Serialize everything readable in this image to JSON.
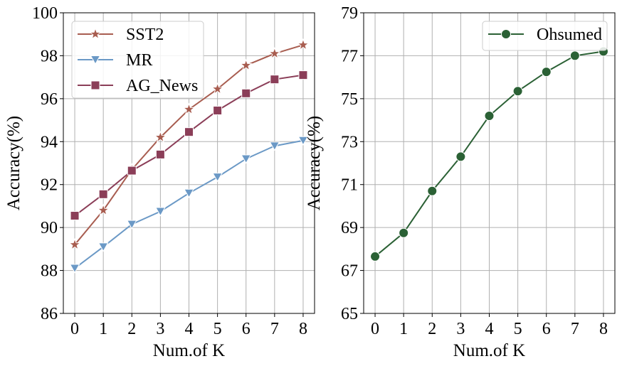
{
  "chart_data": [
    {
      "type": "line",
      "xlabel": "Num.of K",
      "ylabel": "Accuracy(%)",
      "x": [
        0,
        1,
        2,
        3,
        4,
        5,
        6,
        7,
        8
      ],
      "xticks": [
        "0",
        "1",
        "2",
        "3",
        "4",
        "5",
        "6",
        "7",
        "8"
      ],
      "xlim": [
        -0.4,
        8.4
      ],
      "ylim": [
        86,
        100
      ],
      "yticks": [
        "86",
        "88",
        "90",
        "92",
        "94",
        "96",
        "98",
        "100"
      ],
      "grid": true,
      "legend": "top-left",
      "series": [
        {
          "name": "SST2",
          "color": "#a85d50",
          "marker": "star",
          "values": [
            89.2,
            90.8,
            92.7,
            94.2,
            95.5,
            96.45,
            97.55,
            98.1,
            98.5
          ]
        },
        {
          "name": "MR",
          "color": "#6b99c6",
          "marker": "triangle-down",
          "values": [
            88.1,
            89.1,
            90.15,
            90.75,
            91.6,
            92.35,
            93.2,
            93.8,
            94.05
          ]
        },
        {
          "name": "AG_News",
          "color": "#8b3e58",
          "marker": "square",
          "values": [
            90.55,
            91.55,
            92.65,
            93.4,
            94.45,
            95.45,
            96.25,
            96.9,
            97.1
          ]
        }
      ]
    },
    {
      "type": "line",
      "xlabel": "Num.of K",
      "ylabel": "Accuracy(%)",
      "x": [
        0,
        1,
        2,
        3,
        4,
        5,
        6,
        7,
        8
      ],
      "xticks": [
        "0",
        "1",
        "2",
        "3",
        "4",
        "5",
        "6",
        "7",
        "8"
      ],
      "xlim": [
        -0.4,
        8.4
      ],
      "ylim": [
        65,
        79
      ],
      "yticks": [
        "65",
        "67",
        "69",
        "71",
        "73",
        "75",
        "77",
        "79"
      ],
      "grid": true,
      "legend": "top-right",
      "series": [
        {
          "name": "Ohsumed",
          "color": "#2b6135",
          "marker": "circle",
          "values": [
            67.65,
            68.75,
            70.7,
            72.3,
            74.2,
            75.35,
            76.25,
            77.0,
            77.2
          ]
        }
      ]
    }
  ]
}
